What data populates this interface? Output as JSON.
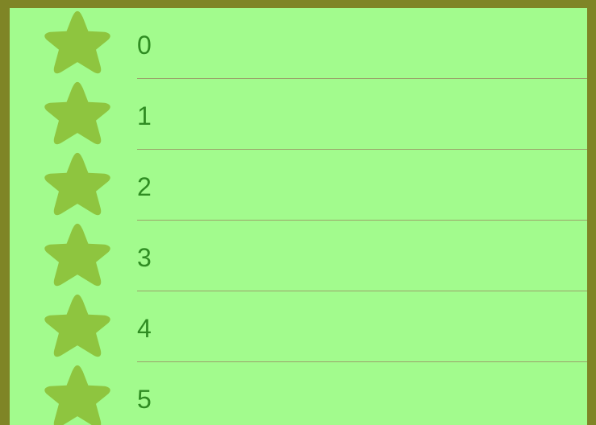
{
  "colors": {
    "frame": "#7f8526",
    "list_background": "#a2fb8d",
    "star": "#8ec53f",
    "label": "#2f8c22",
    "divider": "#9aa36a"
  },
  "list": {
    "items": [
      {
        "label": "0",
        "icon": "star-icon"
      },
      {
        "label": "1",
        "icon": "star-icon"
      },
      {
        "label": "2",
        "icon": "star-icon"
      },
      {
        "label": "3",
        "icon": "star-icon"
      },
      {
        "label": "4",
        "icon": "star-icon"
      },
      {
        "label": "5",
        "icon": "star-icon"
      }
    ]
  }
}
